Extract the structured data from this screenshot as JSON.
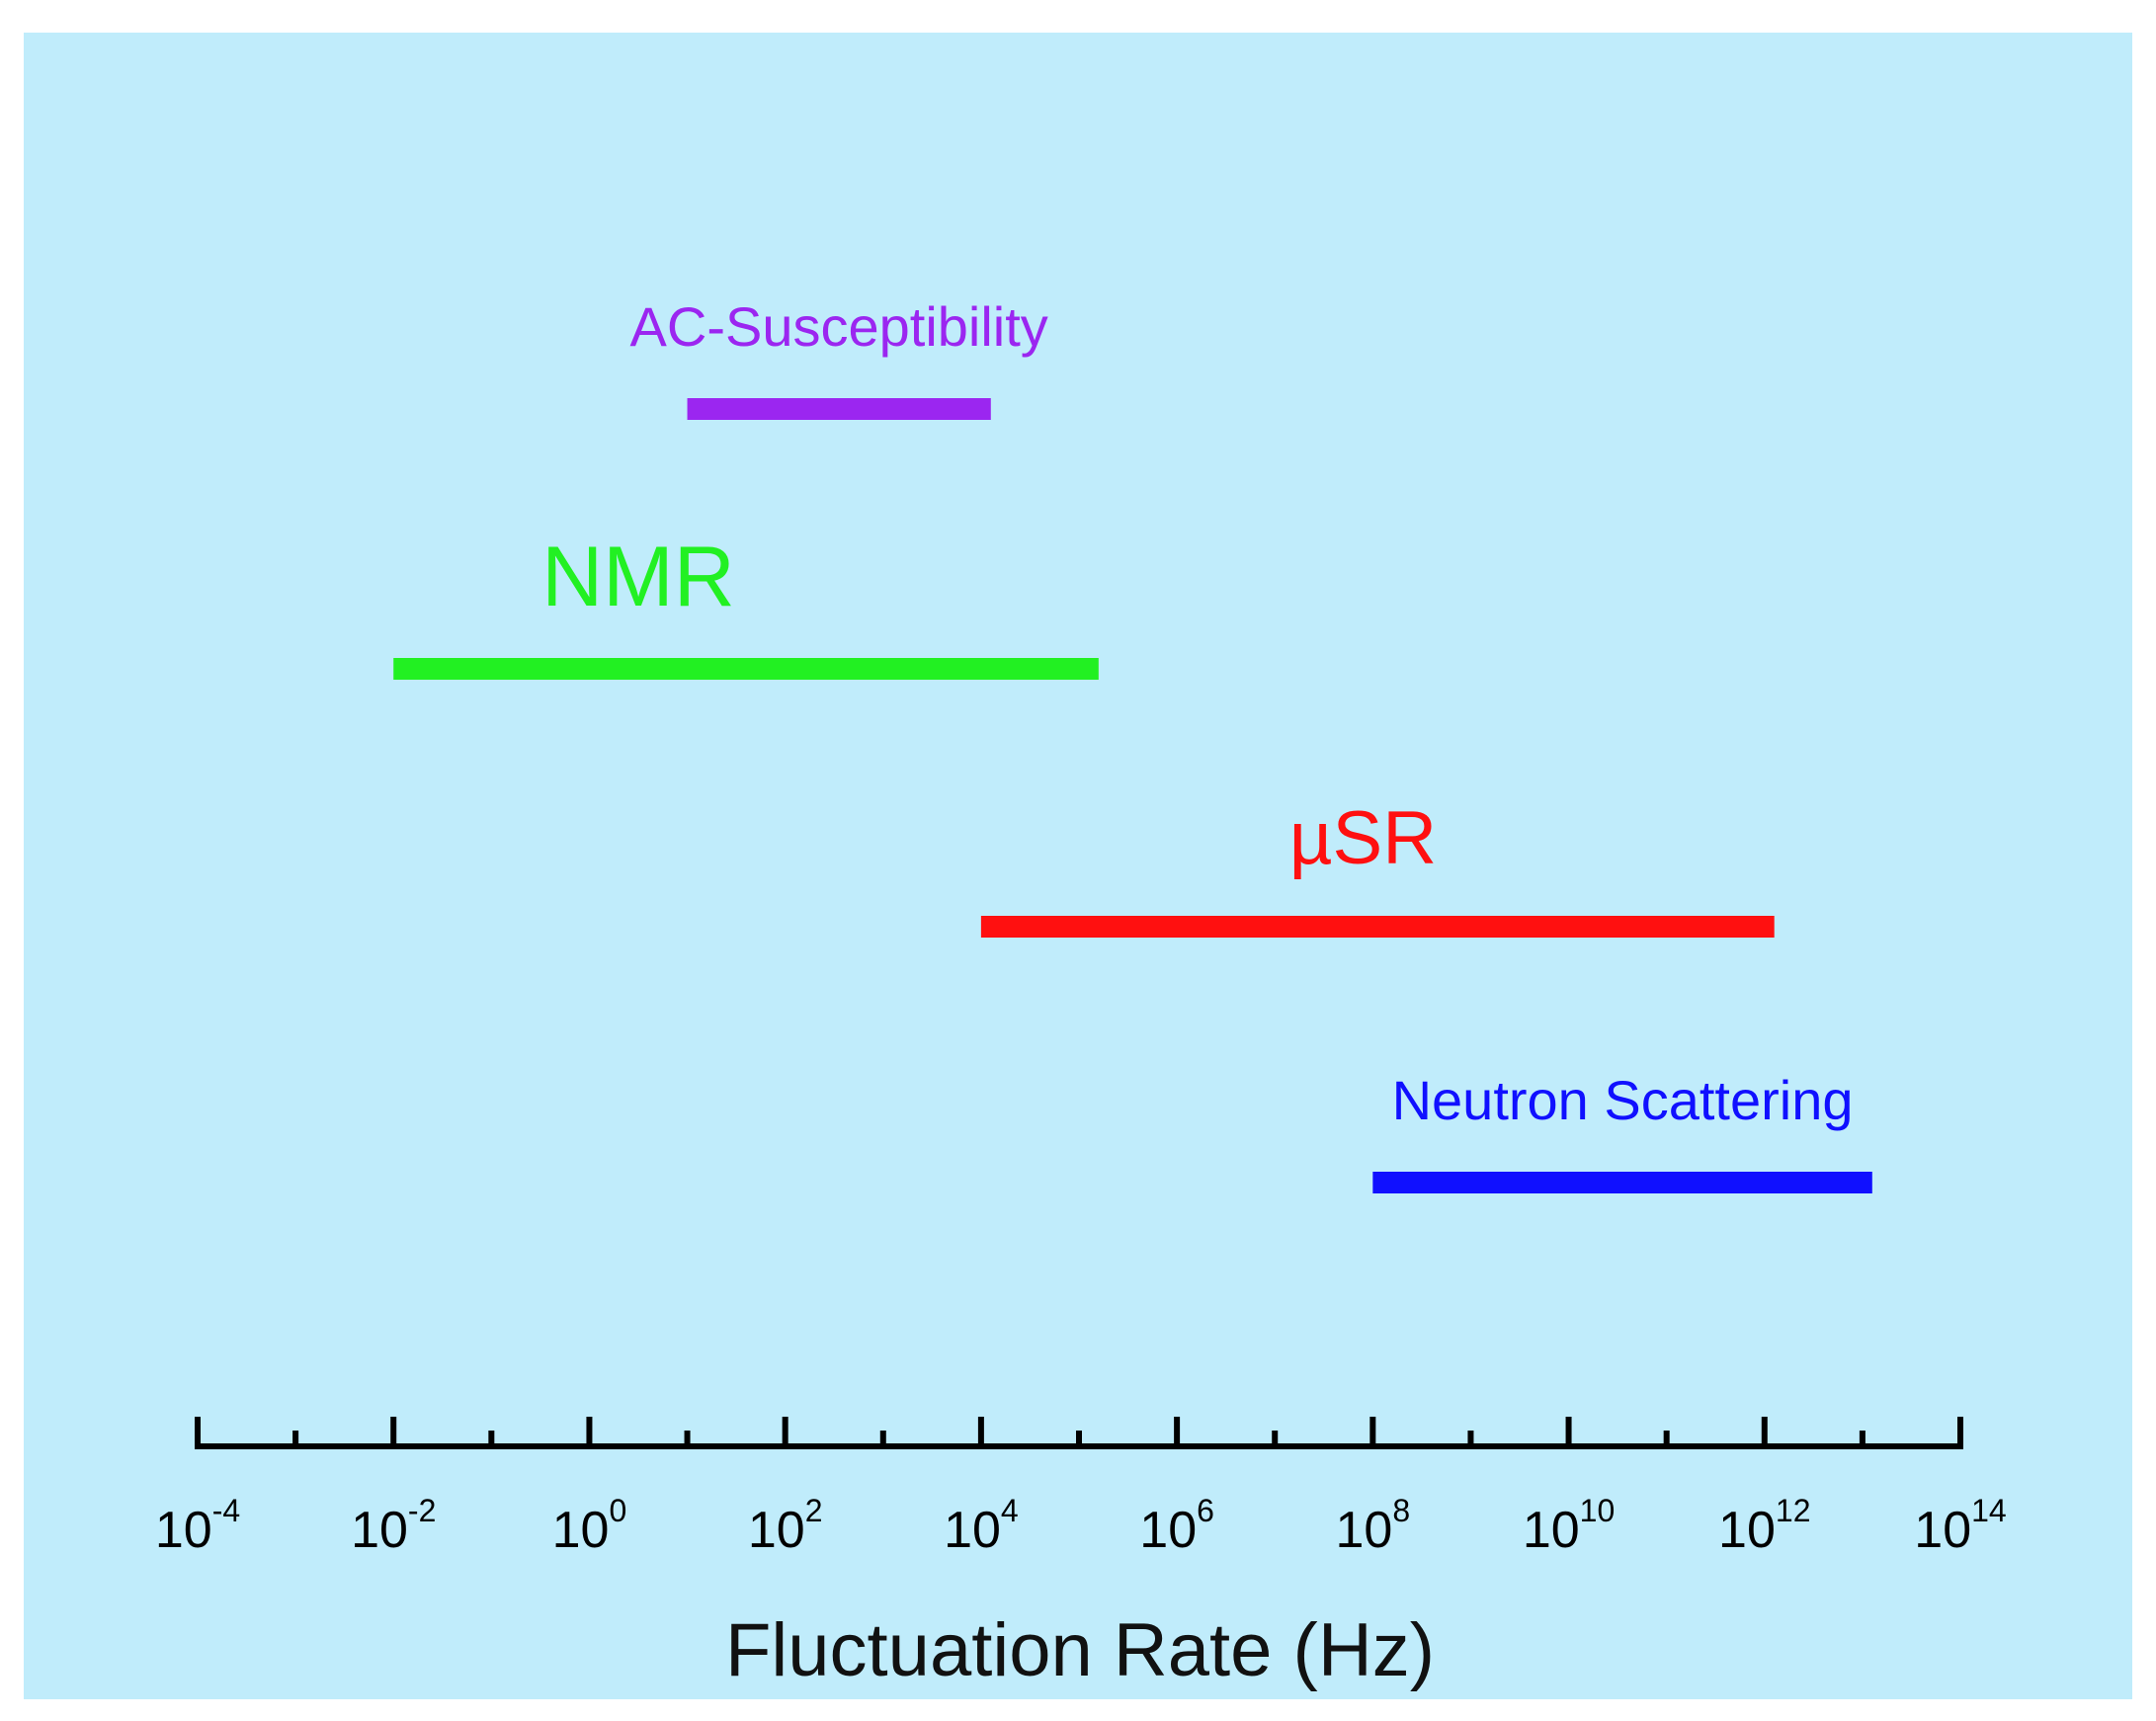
{
  "chart_data": {
    "type": "range",
    "title": "",
    "xlabel": "Fluctuation Rate (Hz)",
    "xscale": "log10",
    "xlim_exponents": [
      -4,
      14
    ],
    "x_tick_exponents": [
      -4,
      -2,
      0,
      2,
      4,
      6,
      8,
      10,
      12,
      14
    ],
    "x_tick_base": "10",
    "x_tick_exponent_labels": [
      "-4",
      "-2",
      "0",
      "2",
      "4",
      "6",
      "8",
      "10",
      "12",
      "14"
    ],
    "series": [
      {
        "name": "AC-Susceptibility",
        "color": "#9b26f0",
        "start_exp": 1,
        "end_exp": 4.1
      },
      {
        "name": "NMR",
        "color": "#22f022",
        "start_exp": -2,
        "end_exp": 5.2
      },
      {
        "name": "µSR",
        "color": "#ff1010",
        "start_exp": 4,
        "end_exp": 12.1
      },
      {
        "name": "Neutron Scattering",
        "color": "#1010ff",
        "start_exp": 8,
        "end_exp": 13.1
      }
    ]
  }
}
